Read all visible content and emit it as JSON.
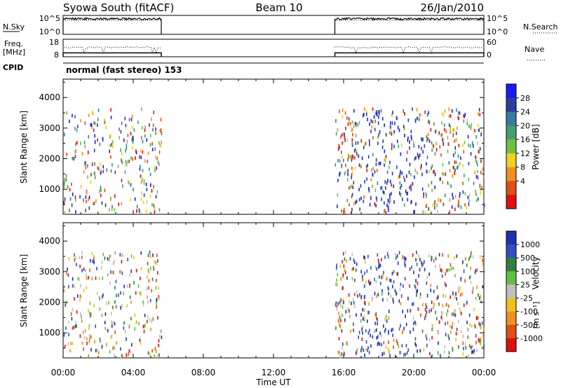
{
  "header": {
    "station": "Syowa South (fitACF)",
    "beam": "Beam 10",
    "date": "26/Jan/2010"
  },
  "top_panels": {
    "nsky_label": "N.Sky",
    "nsky_ticks": [
      "10^5",
      "10^0"
    ],
    "nsearch_label": "N.Search",
    "nsearch_ticks": [
      "10^5",
      "10^0"
    ],
    "freq_label": "Freq.",
    "freq_unit": "[MHz]",
    "freq_ticks": [
      "18",
      "8"
    ],
    "nave_label": "Nave",
    "nave_ticks": [
      "60",
      "0"
    ],
    "cpid_label": "CPID",
    "cpid_value": "normal (fast stereo) 153"
  },
  "x_axis": {
    "label": "Time UT",
    "ticks": [
      "00:00",
      "04:00",
      "08:00",
      "12:00",
      "16:00",
      "20:00",
      "00:00"
    ]
  },
  "power_colorbar": {
    "label": "Power [dB]",
    "ticks": [
      "28",
      "24",
      "20",
      "16",
      "12",
      "8",
      "4"
    ]
  },
  "velocity_colorbar": {
    "label": "Velocity",
    "unit": "[m s⁻¹]",
    "ticks": [
      "1000",
      "500",
      "100",
      "25",
      "-25",
      "-100",
      "-500",
      "-1000"
    ]
  },
  "chart_data": [
    {
      "type": "heatmap",
      "name": "power",
      "xlabel": "Time UT",
      "ylabel": "Slant Range [km]",
      "xlim_hours": [
        0,
        24
      ],
      "ylim_km": [
        180,
        4600
      ],
      "yticks": [
        1000,
        2000,
        3000,
        4000
      ],
      "data_windows_hours": [
        [
          0.0,
          5.6
        ],
        [
          15.5,
          24.0
        ]
      ],
      "scatter_range_km": [
        180,
        3600
      ],
      "colorbar_ticks_db": [
        4,
        8,
        12,
        16,
        20,
        24,
        28
      ],
      "colors": [
        "#1a1aff",
        "#2a3fa0",
        "#3a7aa0",
        "#40a070",
        "#70c040",
        "#f0d020",
        "#f09020",
        "#e05010",
        "#e01010"
      ]
    },
    {
      "type": "heatmap",
      "name": "velocity",
      "xlabel": "Time UT",
      "ylabel": "Slant Range [km]",
      "xlim_hours": [
        0,
        24
      ],
      "ylim_km": [
        180,
        4600
      ],
      "yticks": [
        1000,
        2000,
        3000,
        4000
      ],
      "data_windows_hours": [
        [
          0.0,
          5.6
        ],
        [
          15.5,
          24.0
        ]
      ],
      "scatter_range_km": [
        180,
        3600
      ],
      "colorbar_ticks_ms": [
        1000,
        500,
        100,
        25,
        -25,
        -100,
        -500,
        -1000
      ],
      "colors": [
        "#2030b0",
        "#3050c0",
        "#308040",
        "#60c040",
        "#c0c0c0",
        "#f0c020",
        "#f09020",
        "#e05010",
        "#e01010"
      ]
    },
    {
      "type": "line",
      "name": "nsky_nsearch",
      "ylim_log10": [
        0,
        5
      ],
      "data_windows_hours": [
        [
          0.0,
          5.6
        ],
        [
          15.5,
          24.0
        ]
      ],
      "level_log10": 4.1
    },
    {
      "type": "line",
      "name": "freq_nave",
      "freq_ylim_mhz": [
        8,
        18
      ],
      "nave_ylim": [
        0,
        60
      ],
      "data_windows_hours": [
        [
          0.0,
          5.6
        ],
        [
          15.5,
          24.0
        ]
      ],
      "freq_level_mhz": 10.2,
      "nave_level": 32
    }
  ]
}
